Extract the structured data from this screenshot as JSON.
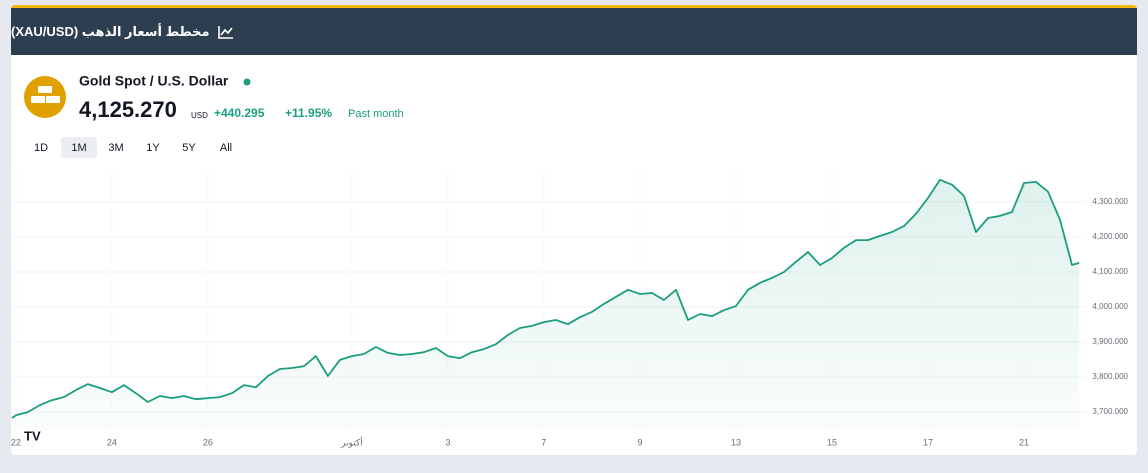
{
  "header": {
    "title": "مخطط أسعار الذهب (XAU/USD)"
  },
  "widget": {
    "name": "Gold Spot / U.S. Dollar",
    "price": "4,125.270",
    "currency": "USD",
    "change": "+440.295",
    "change_percent": "+11.95%",
    "period": "Past month",
    "ranges": [
      "1D",
      "1M",
      "3M",
      "1Y",
      "5Y",
      "All"
    ],
    "selected_range": "1M"
  },
  "chart_data": {
    "type": "line",
    "color": "#1a9e7e",
    "grid": true,
    "x": [
      -0.08,
      0,
      0.25,
      0.5,
      0.75,
      1,
      1.25,
      1.5,
      1.75,
      2,
      2.25,
      2.5,
      2.75,
      3,
      3.25,
      3.5,
      3.75,
      4,
      4.25,
      4.5,
      4.75,
      5,
      5.25,
      5.5,
      5.75,
      6,
      6.25,
      6.5,
      6.75,
      7,
      7.25,
      7.5,
      7.75,
      8,
      8.25,
      8.5,
      8.75,
      9,
      9.25,
      9.5,
      9.75,
      10,
      10.25,
      10.5,
      10.75,
      11,
      11.25,
      11.5,
      11.75,
      12,
      12.25,
      12.5,
      12.75,
      13,
      13.25,
      13.5,
      13.75,
      14,
      14.25,
      14.5,
      14.75,
      15,
      15.25,
      15.5,
      15.75,
      16,
      16.25,
      16.5,
      16.75,
      17,
      17.25,
      17.5,
      17.75,
      18,
      18.25,
      18.5,
      18.75,
      19,
      19.25,
      19.5,
      19.75,
      20,
      20.25,
      20.5,
      20.75,
      21,
      21.25,
      21.5,
      21.75,
      22,
      22.15
    ],
    "values": [
      3683,
      3691,
      3700,
      3720,
      3734,
      3743,
      3763,
      3780,
      3769,
      3757,
      3777,
      3754,
      3729,
      3746,
      3740,
      3746,
      3737,
      3740,
      3743,
      3754,
      3777,
      3771,
      3803,
      3823,
      3826,
      3831,
      3860,
      3803,
      3849,
      3860,
      3866,
      3886,
      3869,
      3863,
      3866,
      3871,
      3883,
      3860,
      3854,
      3871,
      3880,
      3894,
      3920,
      3940,
      3946,
      3957,
      3963,
      3951,
      3971,
      3986,
      4009,
      4029,
      4049,
      4037,
      4040,
      4020,
      4049,
      3963,
      3980,
      3974,
      3991,
      4003,
      4049,
      4069,
      4083,
      4100,
      4129,
      4157,
      4120,
      4140,
      4169,
      4191,
      4191,
      4203,
      4214,
      4231,
      4266,
      4311,
      4363,
      4349,
      4317,
      4214,
      4254,
      4260,
      4271,
      4354,
      4357,
      4329,
      4249,
      4120,
      4126
    ],
    "xlim": [
      -0.08,
      22.27
    ],
    "xticks": [
      {
        "value": 0,
        "label": "22"
      },
      {
        "value": 2,
        "label": "24"
      },
      {
        "value": 4,
        "label": "26"
      },
      {
        "value": 7,
        "label": "أكتوبر"
      },
      {
        "value": 9,
        "label": "3"
      },
      {
        "value": 11,
        "label": "7"
      },
      {
        "value": 13,
        "label": "9"
      },
      {
        "value": 15,
        "label": "13"
      },
      {
        "value": 17,
        "label": "15"
      },
      {
        "value": 19,
        "label": "17"
      },
      {
        "value": 21,
        "label": "21"
      }
    ],
    "ylim": [
      3649,
      4391
    ],
    "yticks": [
      {
        "value": 3700,
        "label": "3,700.000"
      },
      {
        "value": 3800,
        "label": "3,800.000"
      },
      {
        "value": 3900,
        "label": "3,900.000"
      },
      {
        "value": 4000,
        "label": "4,000.000"
      },
      {
        "value": 4100,
        "label": "4,100.000"
      },
      {
        "value": 4200,
        "label": "4,200.000"
      },
      {
        "value": 4300,
        "label": "4,300.000"
      }
    ]
  }
}
